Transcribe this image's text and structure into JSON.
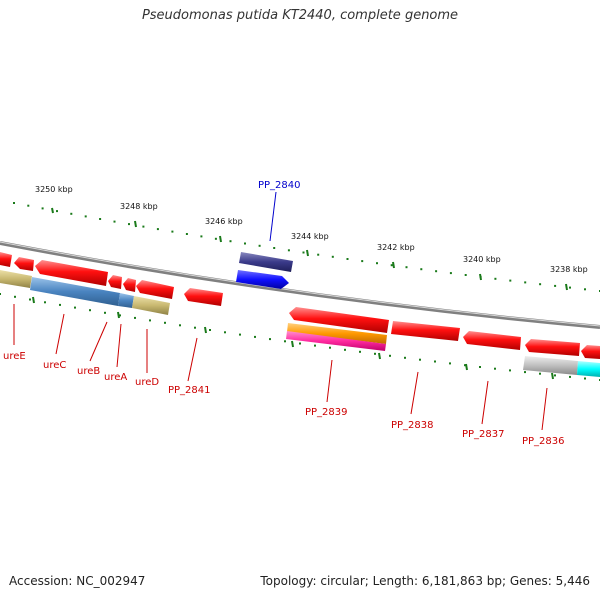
{
  "title": "Pseudomonas putida KT2440, complete genome",
  "footer": {
    "accession": "Accession: NC_002947",
    "summary": "Topology: circular; Length: 6,181,863 bp; Genes: 5,446"
  },
  "ruler": {
    "labels": [
      "3250 kbp",
      "3248 kbp",
      "3246 kbp",
      "3244 kbp",
      "3242 kbp",
      "3240 kbp",
      "3238 kbp"
    ]
  },
  "genes": {
    "upper": [
      "PP_2840"
    ],
    "lower": [
      "ureE",
      "ureC",
      "ureB",
      "ureA",
      "ureD",
      "PP_2841",
      "PP_2839",
      "PP_2838",
      "PP_2837",
      "PP_2836"
    ]
  },
  "colors": {
    "cds": "#ff0000",
    "backbone": "#888888",
    "ticks": "#1a7a1a",
    "label_lower": "#cc0000",
    "label_upper": "#0000cc",
    "feature_blue": "#1a1aff",
    "feature_navy": "#3a3a8a",
    "feature_orange": "#ff9900",
    "feature_magenta": "#ff33aa",
    "feature_steelblue": "#4a84c0",
    "feature_khaki": "#c8b870",
    "feature_gray": "#bfbfbf",
    "feature_cyan": "#00ffff"
  }
}
